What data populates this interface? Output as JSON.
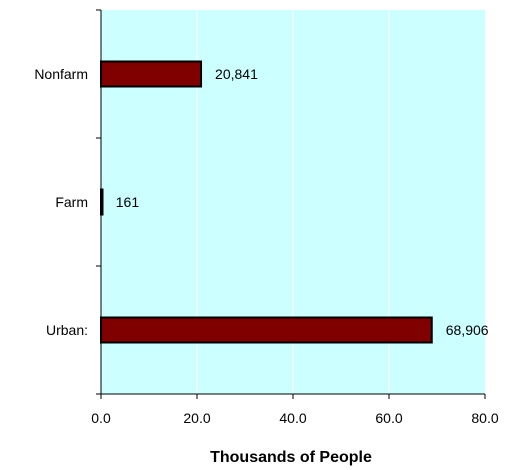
{
  "chart_data": {
    "type": "bar",
    "orientation": "horizontal",
    "categories": [
      "Nonfarm",
      "Farm",
      "Urban:"
    ],
    "values": [
      20.841,
      0.161,
      68.906
    ],
    "data_labels": [
      "20,841",
      "161",
      "68,906"
    ],
    "x_ticks": [
      "0.0",
      "20.0",
      "40.0",
      "60.0",
      "80.0"
    ],
    "xlim": [
      0,
      80
    ],
    "xlabel": "Thousands of People",
    "ylabel": "",
    "title": "",
    "grid": "vertical",
    "legend": "none",
    "colors": {
      "plot_background": "#ccffff",
      "bar_fill": "#800000",
      "bar_stroke": "#000000",
      "gridline": "#ffffff"
    }
  }
}
